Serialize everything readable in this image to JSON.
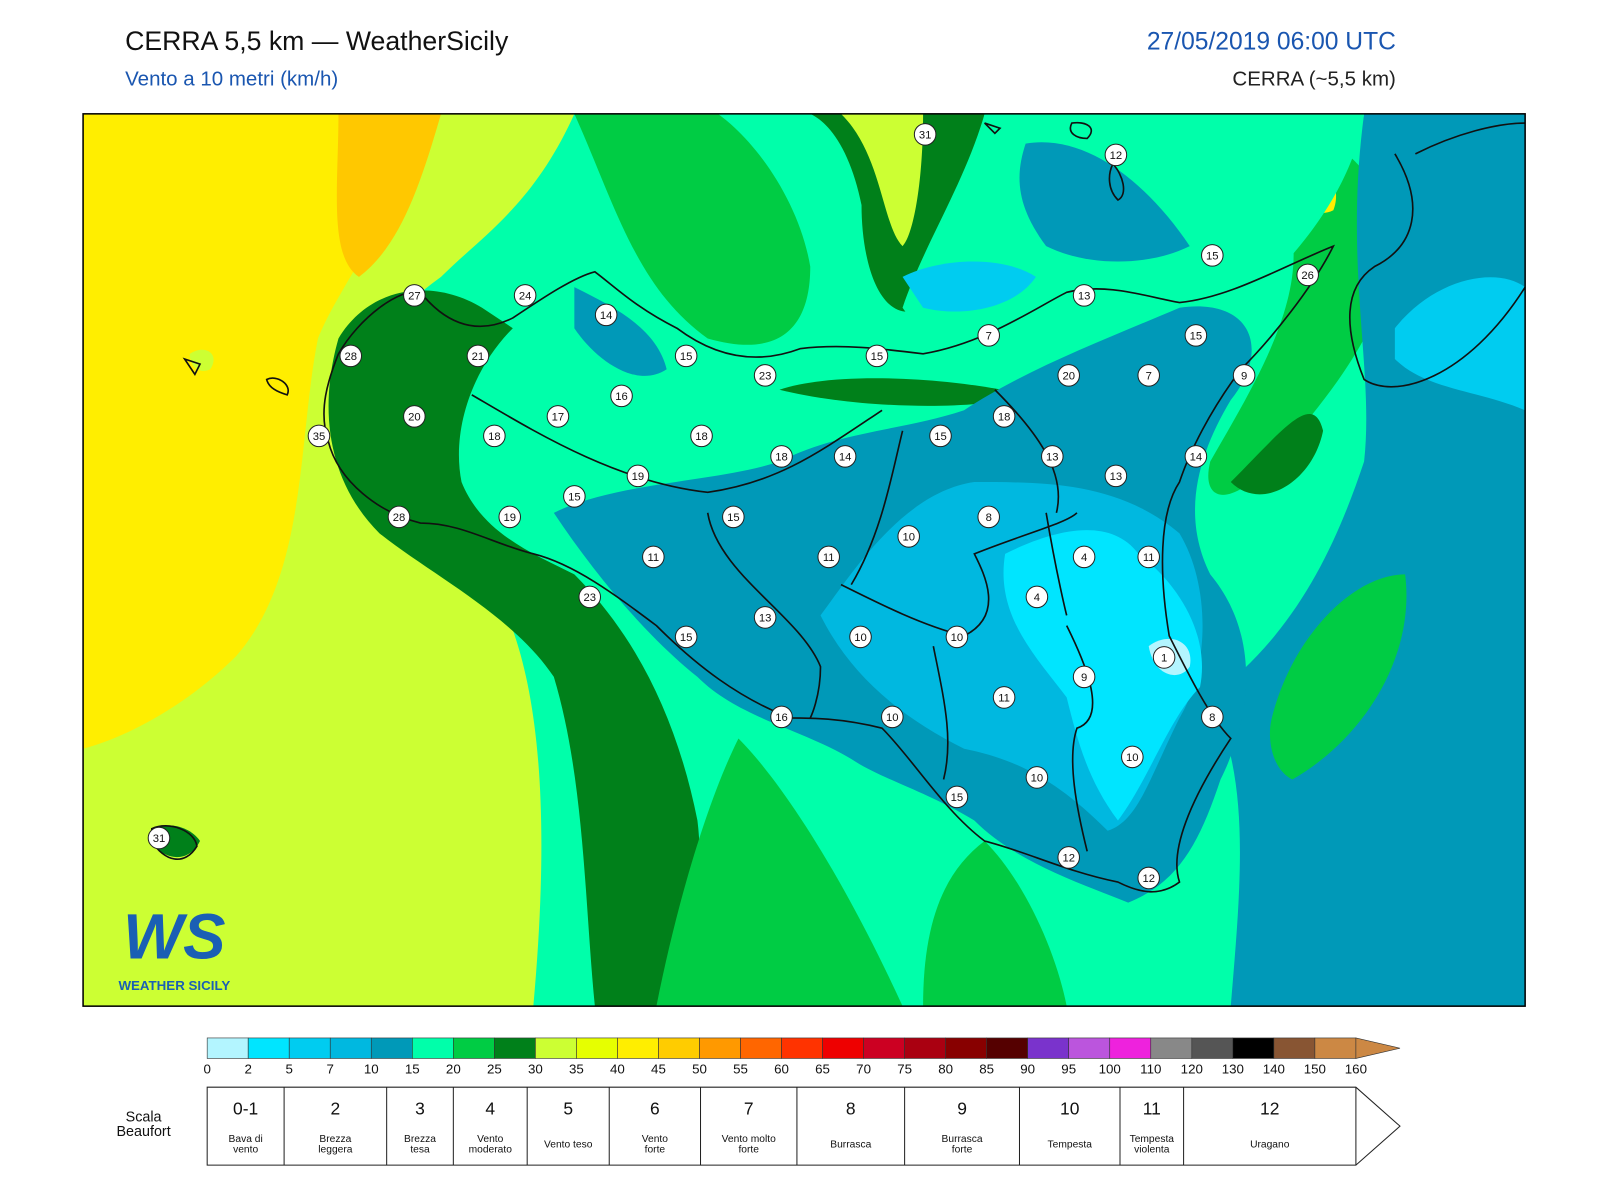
{
  "header": {
    "title": "CERRA 5,5 km — WeatherSicily",
    "subtitle": "Vento a 10 metri (km/h)",
    "datetime": "27/05/2019 06:00 UTC",
    "model": "CERRA (~5,5 km)"
  },
  "stations": [
    31,
    12,
    15,
    26,
    27,
    24,
    13,
    14,
    7,
    15,
    28,
    21,
    15,
    15,
    23,
    20,
    7,
    9,
    16,
    20,
    17,
    18,
    35,
    18,
    18,
    15,
    18,
    14,
    13,
    14,
    19,
    13,
    15,
    15,
    8,
    28,
    19,
    10,
    11,
    11,
    4,
    11,
    4,
    23,
    13,
    15,
    10,
    10,
    1,
    9,
    11,
    16,
    10,
    8,
    10,
    10,
    15,
    31,
    12,
    12
  ],
  "logo": {
    "mark": "WS",
    "name": "WEATHER SICILY"
  },
  "colorbar": {
    "ticks": [
      0,
      2,
      5,
      7,
      10,
      15,
      20,
      25,
      30,
      35,
      40,
      45,
      50,
      55,
      60,
      65,
      70,
      75,
      80,
      85,
      90,
      95,
      100,
      110,
      120,
      130,
      140,
      150,
      160
    ],
    "colors": [
      "#b3f5ff",
      "#00e5ff",
      "#00ccf0",
      "#00b8e0",
      "#0099b8",
      "#00ffaa",
      "#00cc44",
      "#00801a",
      "#ccff33",
      "#e6ff00",
      "#ffee00",
      "#ffcc00",
      "#ff9900",
      "#ff6600",
      "#ff3300",
      "#ee0000",
      "#cc0022",
      "#aa0011",
      "#880000",
      "#550000",
      "#7a33cc",
      "#bb55dd",
      "#ee22dd",
      "#888888",
      "#555555",
      "#000000",
      "#885533",
      "#cc8844"
    ]
  },
  "beaufort": {
    "label": [
      "Scala",
      "Beaufort"
    ],
    "classes": [
      {
        "force": "0-1",
        "desc": [
          "Bava di",
          "vento"
        ]
      },
      {
        "force": "2",
        "desc": [
          "Brezza",
          "leggera"
        ]
      },
      {
        "force": "3",
        "desc": [
          "Brezza",
          "tesa"
        ]
      },
      {
        "force": "4",
        "desc": [
          "Vento",
          "moderato"
        ]
      },
      {
        "force": "5",
        "desc": [
          "Vento teso"
        ]
      },
      {
        "force": "6",
        "desc": [
          "Vento",
          "forte"
        ]
      },
      {
        "force": "7",
        "desc": [
          "Vento molto",
          "forte"
        ]
      },
      {
        "force": "8",
        "desc": [
          "Burrasca"
        ]
      },
      {
        "force": "9",
        "desc": [
          "Burrasca",
          "forte"
        ]
      },
      {
        "force": "10",
        "desc": [
          "Tempesta"
        ]
      },
      {
        "force": "11",
        "desc": [
          "Tempesta",
          "violenta"
        ]
      },
      {
        "force": "12",
        "desc": [
          "Uragano"
        ]
      }
    ]
  }
}
